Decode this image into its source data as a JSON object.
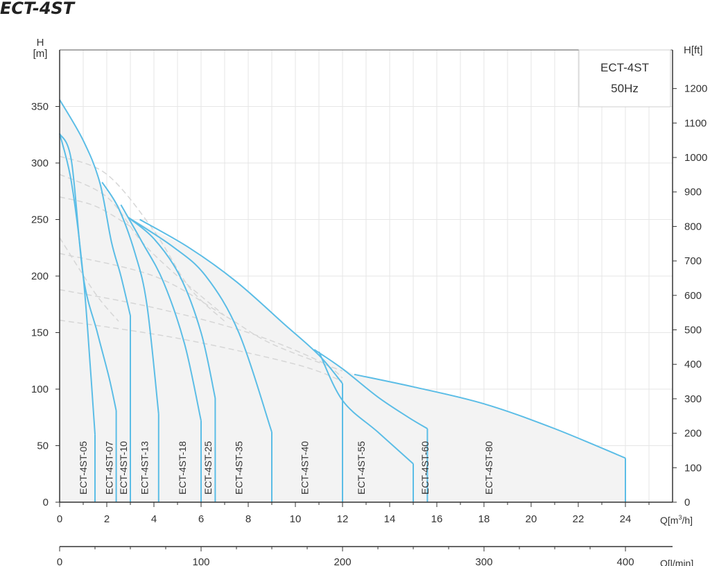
{
  "page": {
    "title": "ECT-4ST"
  },
  "chart_data": {
    "type": "line",
    "title": "ECT-4ST",
    "infobox": {
      "line1": "ECT-4ST",
      "line2": "50Hz"
    },
    "xlabel": "Q[m³/h]",
    "xlabel_base": "Q[m",
    "xlabel_sup": "3",
    "xlabel_tail": "/h]",
    "x2label": "Q[l/min]",
    "ylabel": "H [m]",
    "ylabel_top": "H",
    "ylabel_bottom": "[m]",
    "y2label": "H[ft]",
    "xlim": [
      0,
      26
    ],
    "ylim": [
      0,
      400
    ],
    "y2lim": [
      0,
      1312
    ],
    "x2lim": [
      0,
      433.3
    ],
    "xticks": [
      0,
      2,
      4,
      6,
      8,
      10,
      12,
      14,
      16,
      18,
      20,
      22,
      24
    ],
    "yticks": [
      0,
      50,
      100,
      150,
      200,
      250,
      300,
      350
    ],
    "y2ticks": [
      0,
      100,
      200,
      300,
      400,
      500,
      600,
      700,
      800,
      900,
      1000,
      1100,
      1200
    ],
    "x2ticks": [
      0,
      100,
      200,
      300,
      400
    ],
    "grid": true,
    "curve_color": "#5bbde6",
    "area_color": "#f3f3f3",
    "dashed_color": "#d6d6d6",
    "series": [
      {
        "name": "ECT-4ST-05",
        "points": [
          [
            0,
            326
          ],
          [
            0.5,
            283
          ],
          [
            1.0,
            200
          ],
          [
            1.3,
            120
          ],
          [
            1.5,
            60
          ]
        ],
        "end_x": 1.5
      },
      {
        "name": "ECT-4ST-07",
        "points": [
          [
            0,
            326
          ],
          [
            0.5,
            302
          ],
          [
            1.0,
            200
          ],
          [
            1.6,
            150
          ],
          [
            2.1,
            110
          ],
          [
            2.4,
            81
          ]
        ],
        "end_x": 2.4
      },
      {
        "name": "ECT-4ST-10",
        "points": [
          [
            0,
            356
          ],
          [
            1.0,
            320
          ],
          [
            1.7,
            283
          ],
          [
            2.2,
            230
          ],
          [
            2.6,
            200
          ],
          [
            3.0,
            165
          ]
        ],
        "end_x": 3.0
      },
      {
        "name": "ECT-4ST-13",
        "points": [
          [
            1.8,
            283
          ],
          [
            2.5,
            260
          ],
          [
            3.2,
            220
          ],
          [
            3.7,
            175
          ],
          [
            4.2,
            78
          ]
        ],
        "end_x": 4.2
      },
      {
        "name": "ECT-4ST-18",
        "points": [
          [
            2.6,
            263
          ],
          [
            3.5,
            230
          ],
          [
            4.4,
            195
          ],
          [
            5.3,
            140
          ],
          [
            6.0,
            72
          ]
        ],
        "end_x": 6.0
      },
      {
        "name": "ECT-4ST-25",
        "points": [
          [
            2.9,
            252
          ],
          [
            4.0,
            233
          ],
          [
            5.1,
            200
          ],
          [
            6.0,
            150
          ],
          [
            6.6,
            92
          ]
        ],
        "end_x": 6.6
      },
      {
        "name": "ECT-4ST-35",
        "points": [
          [
            2.9,
            252
          ],
          [
            4.8,
            226
          ],
          [
            6.2,
            200
          ],
          [
            7.6,
            150
          ],
          [
            9.0,
            62
          ]
        ],
        "end_x": 9.0
      },
      {
        "name": "ECT-4ST-40",
        "points": [
          [
            3.4,
            250
          ],
          [
            5.5,
            225
          ],
          [
            7.5,
            195
          ],
          [
            9.5,
            158
          ],
          [
            11.0,
            130
          ],
          [
            12.0,
            105
          ]
        ],
        "end_x": 12.0
      },
      {
        "name": "ECT-4ST-55",
        "points": [
          [
            11.0,
            133
          ],
          [
            12.0,
            90
          ],
          [
            13.5,
            62
          ],
          [
            15.0,
            34
          ]
        ],
        "end_x": 15.0
      },
      {
        "name": "ECT-4ST-60",
        "points": [
          [
            10.8,
            135
          ],
          [
            12.0,
            118
          ],
          [
            13.5,
            93
          ],
          [
            14.8,
            75
          ],
          [
            15.6,
            65
          ]
        ],
        "end_x": 15.6
      },
      {
        "name": "ECT-4ST-80",
        "points": [
          [
            12.5,
            113
          ],
          [
            15.0,
            102
          ],
          [
            18.0,
            87
          ],
          [
            21.0,
            65
          ],
          [
            24.0,
            39
          ]
        ],
        "end_x": 24.0
      }
    ],
    "label_x": [
      1.0,
      2.1,
      2.7,
      3.6,
      5.2,
      6.3,
      7.6,
      10.4,
      12.8,
      15.5,
      18.2
    ],
    "dashed_curves": [
      [
        [
          0,
          306
        ],
        [
          2,
          290
        ],
        [
          4,
          240
        ],
        [
          5.5,
          190
        ],
        [
          7,
          160
        ]
      ],
      [
        [
          0,
          290
        ],
        [
          2,
          270
        ],
        [
          3.5,
          230
        ],
        [
          5,
          200
        ],
        [
          7,
          165
        ]
      ],
      [
        [
          0,
          270
        ],
        [
          1.5,
          262
        ],
        [
          3,
          244
        ]
      ],
      [
        [
          0,
          234
        ],
        [
          1.5,
          185
        ],
        [
          2.5,
          160
        ]
      ],
      [
        [
          0,
          220
        ],
        [
          4,
          200
        ],
        [
          7,
          165
        ],
        [
          9,
          140
        ],
        [
          12,
          116
        ]
      ],
      [
        [
          0,
          188
        ],
        [
          4,
          172
        ],
        [
          8,
          150
        ],
        [
          11,
          125
        ],
        [
          12,
          110
        ]
      ],
      [
        [
          0,
          161
        ],
        [
          5,
          145
        ],
        [
          10,
          122
        ],
        [
          12,
          107
        ]
      ]
    ]
  }
}
